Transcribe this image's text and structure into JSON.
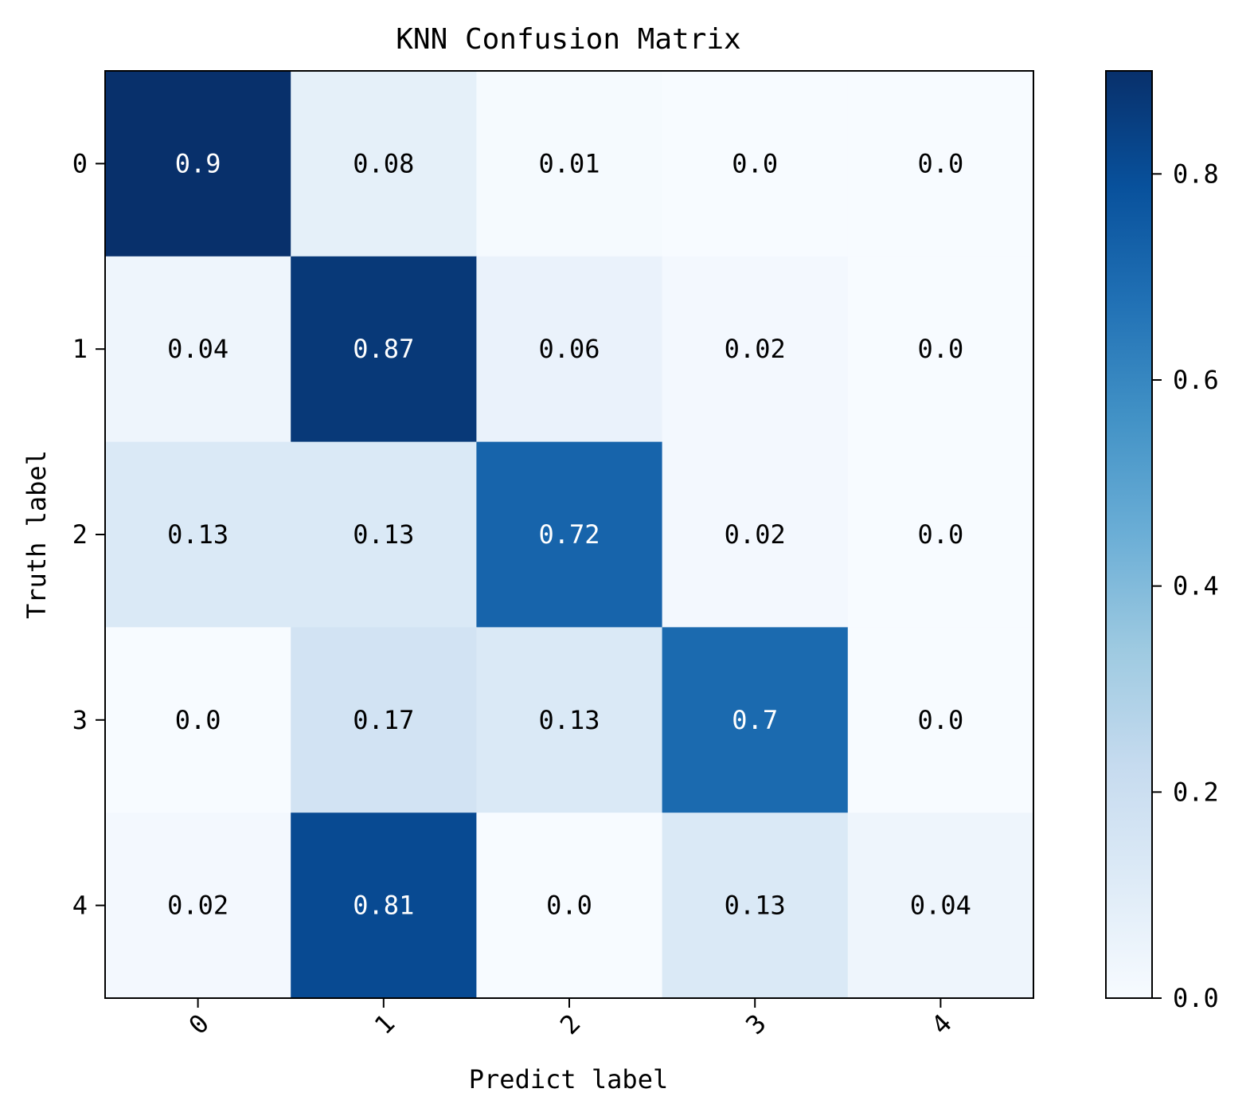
{
  "chart_data": {
    "type": "heatmap",
    "title": "KNN Confusion Matrix",
    "xlabel": "Predict label",
    "ylabel": "Truth label",
    "x_categories": [
      "0",
      "1",
      "2",
      "3",
      "4"
    ],
    "y_categories": [
      "0",
      "1",
      "2",
      "3",
      "4"
    ],
    "values": [
      [
        0.9,
        0.08,
        0.01,
        0.0,
        0.0
      ],
      [
        0.04,
        0.87,
        0.06,
        0.02,
        0.0
      ],
      [
        0.13,
        0.13,
        0.72,
        0.02,
        0.0
      ],
      [
        0.0,
        0.17,
        0.13,
        0.7,
        0.0
      ],
      [
        0.02,
        0.81,
        0.0,
        0.13,
        0.04
      ]
    ],
    "cell_labels": [
      [
        "0.9",
        "0.08",
        "0.01",
        "0.0",
        "0.0"
      ],
      [
        "0.04",
        "0.87",
        "0.06",
        "0.02",
        "0.0"
      ],
      [
        "0.13",
        "0.13",
        "0.72",
        "0.02",
        "0.0"
      ],
      [
        "0.0",
        "0.17",
        "0.13",
        "0.7",
        "0.0"
      ],
      [
        "0.02",
        "0.81",
        "0.0",
        "0.13",
        "0.04"
      ]
    ],
    "colormap": "Blues",
    "colorbar": {
      "min": 0.0,
      "max": 0.9,
      "ticks": [
        0.0,
        0.2,
        0.4,
        0.6,
        0.8
      ],
      "tick_labels": [
        "0.0",
        "0.2",
        "0.4",
        "0.6",
        "0.8"
      ]
    },
    "x_tick_rotation": "45 degrees",
    "grid": false
  },
  "colors": {
    "light_text": "#ffffff",
    "dark_text": "#000000",
    "frame": "#000000"
  }
}
